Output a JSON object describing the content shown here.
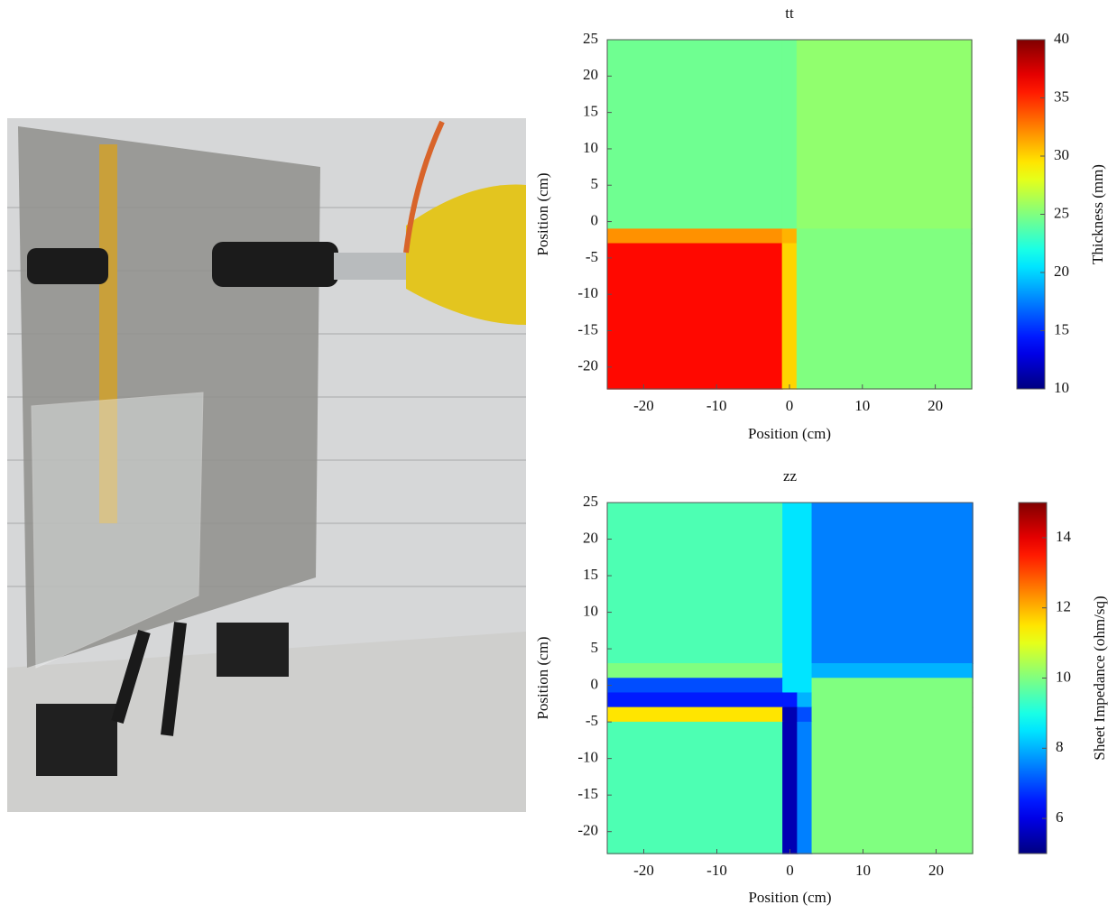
{
  "chart_data": [
    {
      "type": "heatmap",
      "title": "tt",
      "xlabel": "Position (cm)",
      "ylabel": "Position (cm)",
      "colorbar_label": "Thickness (mm)",
      "colormap": "jet",
      "x_edges": [
        -25,
        -1,
        1,
        25
      ],
      "y_edges": [
        25,
        -1,
        -3,
        -23
      ],
      "values": [
        [
          24.5,
          24.5,
          25.5
        ],
        [
          32,
          31,
          25
        ],
        [
          36,
          30,
          25
        ]
      ],
      "xlim": [
        -25,
        25
      ],
      "ylim": [
        -23,
        25
      ],
      "xticks": [
        -20,
        -10,
        0,
        10,
        20
      ],
      "yticks": [
        25,
        20,
        15,
        10,
        5,
        0,
        -5,
        -10,
        -15,
        -20
      ],
      "clim": [
        10,
        40
      ],
      "cticks": [
        10,
        15,
        20,
        25,
        30,
        35,
        40
      ]
    },
    {
      "type": "heatmap",
      "title": "zz",
      "xlabel": "Position (cm)",
      "ylabel": "Position (cm)",
      "colorbar_label": "Sheet Impedance (ohm/sq)",
      "colormap": "jet",
      "x_edges": [
        -25,
        -1,
        1,
        3,
        25
      ],
      "y_edges": [
        25,
        3,
        1,
        -1,
        -3,
        -5,
        -23
      ],
      "values": [
        [
          9.5,
          8.5,
          8.5,
          7.5
        ],
        [
          10,
          8.5,
          8.5,
          8
        ],
        [
          7,
          8.5,
          8.5,
          10
        ],
        [
          6.5,
          6.5,
          8,
          10
        ],
        [
          11.5,
          5.5,
          7,
          10
        ],
        [
          9.5,
          5.5,
          7.5,
          10
        ]
      ],
      "xlim": [
        -25,
        25
      ],
      "ylim": [
        -23,
        25
      ],
      "xticks": [
        -20,
        -10,
        0,
        10,
        20
      ],
      "yticks": [
        25,
        20,
        15,
        10,
        5,
        0,
        -5,
        -10,
        -15,
        -20
      ],
      "clim": [
        5,
        15
      ],
      "cticks": [
        6,
        8,
        10,
        12,
        14
      ]
    }
  ]
}
